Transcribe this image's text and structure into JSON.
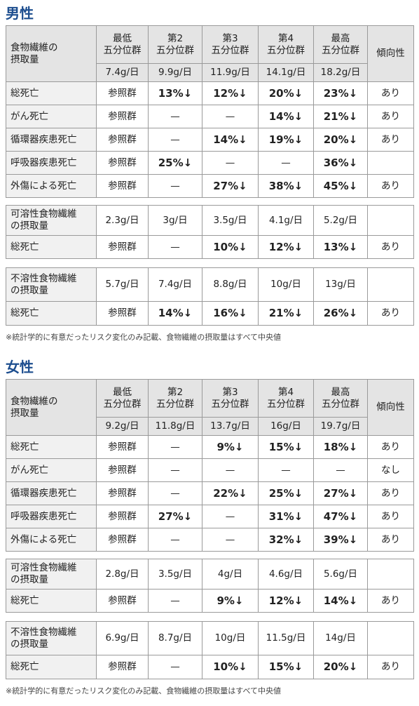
{
  "sections": [
    {
      "title": "男性",
      "main_table": {
        "header": {
          "label": "食物繊維の\n摂取量",
          "groups": [
            "最低\n五分位群",
            "第2\n五分位群",
            "第3\n五分位群",
            "第4\n五分位群",
            "最高\n五分位群"
          ],
          "trend": "傾向性",
          "intakes": [
            "7.4g/日",
            "9.9g/日",
            "11.9g/日",
            "14.1g/日",
            "18.2g/日"
          ]
        },
        "rows": [
          {
            "label": "総死亡",
            "cells": [
              "参照群",
              "13%↓",
              "12%↓",
              "20%↓",
              "23%↓"
            ],
            "trend": "あり"
          },
          {
            "label": "がん死亡",
            "cells": [
              "参照群",
              "—",
              "—",
              "14%↓",
              "21%↓"
            ],
            "trend": "あり"
          },
          {
            "label": "循環器疾患死亡",
            "cells": [
              "参照群",
              "—",
              "14%↓",
              "19%↓",
              "20%↓"
            ],
            "trend": "あり"
          },
          {
            "label": "呼吸器疾患死亡",
            "cells": [
              "参照群",
              "25%↓",
              "—",
              "—",
              "36%↓"
            ],
            "trend": null
          },
          {
            "label": "外傷による死亡",
            "cells": [
              "参照群",
              "—",
              "27%↓",
              "38%↓",
              "45%↓"
            ],
            "trend": "あり"
          }
        ]
      },
      "soluble_table": {
        "label": "可溶性食物繊維\nの摂取量",
        "intakes": [
          "2.3g/日",
          "3g/日",
          "3.5g/日",
          "4.1g/日",
          "5.2g/日"
        ],
        "rows": [
          {
            "label": "総死亡",
            "cells": [
              "参照群",
              "—",
              "10%↓",
              "12%↓",
              "13%↓"
            ],
            "trend": "あり"
          }
        ]
      },
      "insoluble_table": {
        "label": "不溶性食物繊維\nの摂取量",
        "intakes": [
          "5.7g/日",
          "7.4g/日",
          "8.8g/日",
          "10g/日",
          "13g/日"
        ],
        "rows": [
          {
            "label": "総死亡",
            "cells": [
              "参照群",
              "14%↓",
              "16%↓",
              "21%↓",
              "26%↓"
            ],
            "trend": "あり"
          }
        ]
      },
      "note": "※統計学的に有意だったリスク変化のみ記載、食物繊維の摂取量はすべて中央値"
    },
    {
      "title": "女性",
      "main_table": {
        "header": {
          "label": "食物繊維の\n摂取量",
          "groups": [
            "最低\n五分位群",
            "第2\n五分位群",
            "第3\n五分位群",
            "第4\n五分位群",
            "最高\n五分位群"
          ],
          "trend": "傾向性",
          "intakes": [
            "9.2g/日",
            "11.8g/日",
            "13.7g/日",
            "16g/日",
            "19.7g/日"
          ]
        },
        "rows": [
          {
            "label": "総死亡",
            "cells": [
              "参照群",
              "—",
              "9%↓",
              "15%↓",
              "18%↓"
            ],
            "trend": "あり"
          },
          {
            "label": "がん死亡",
            "cells": [
              "参照群",
              "—",
              "—",
              "—",
              "—"
            ],
            "trend": "なし"
          },
          {
            "label": "循環器疾患死亡",
            "cells": [
              "参照群",
              "—",
              "22%↓",
              "25%↓",
              "27%↓"
            ],
            "trend": "あり"
          },
          {
            "label": "呼吸器疾患死亡",
            "cells": [
              "参照群",
              "27%↓",
              "—",
              "31%↓",
              "47%↓"
            ],
            "trend": "あり"
          },
          {
            "label": "外傷による死亡",
            "cells": [
              "参照群",
              "—",
              "—",
              "32%↓",
              "39%↓"
            ],
            "trend": "あり"
          }
        ]
      },
      "soluble_table": {
        "label": "可溶性食物繊維\nの摂取量",
        "intakes": [
          "2.8g/日",
          "3.5g/日",
          "4g/日",
          "4.6g/日",
          "5.6g/日"
        ],
        "rows": [
          {
            "label": "総死亡",
            "cells": [
              "参照群",
              "—",
              "9%↓",
              "12%↓",
              "14%↓"
            ],
            "trend": "あり"
          }
        ]
      },
      "insoluble_table": {
        "label": "不溶性食物繊維\nの摂取量",
        "intakes": [
          "6.9g/日",
          "8.7g/日",
          "10g/日",
          "11.5g/日",
          "14g/日"
        ],
        "rows": [
          {
            "label": "総死亡",
            "cells": [
              "参照群",
              "—",
              "10%↓",
              "15%↓",
              "20%↓"
            ],
            "trend": "あり"
          }
        ]
      },
      "note": "※統計学的に有意だったリスク変化のみ記載、食物繊維の摂取量はすべて中央値"
    }
  ]
}
